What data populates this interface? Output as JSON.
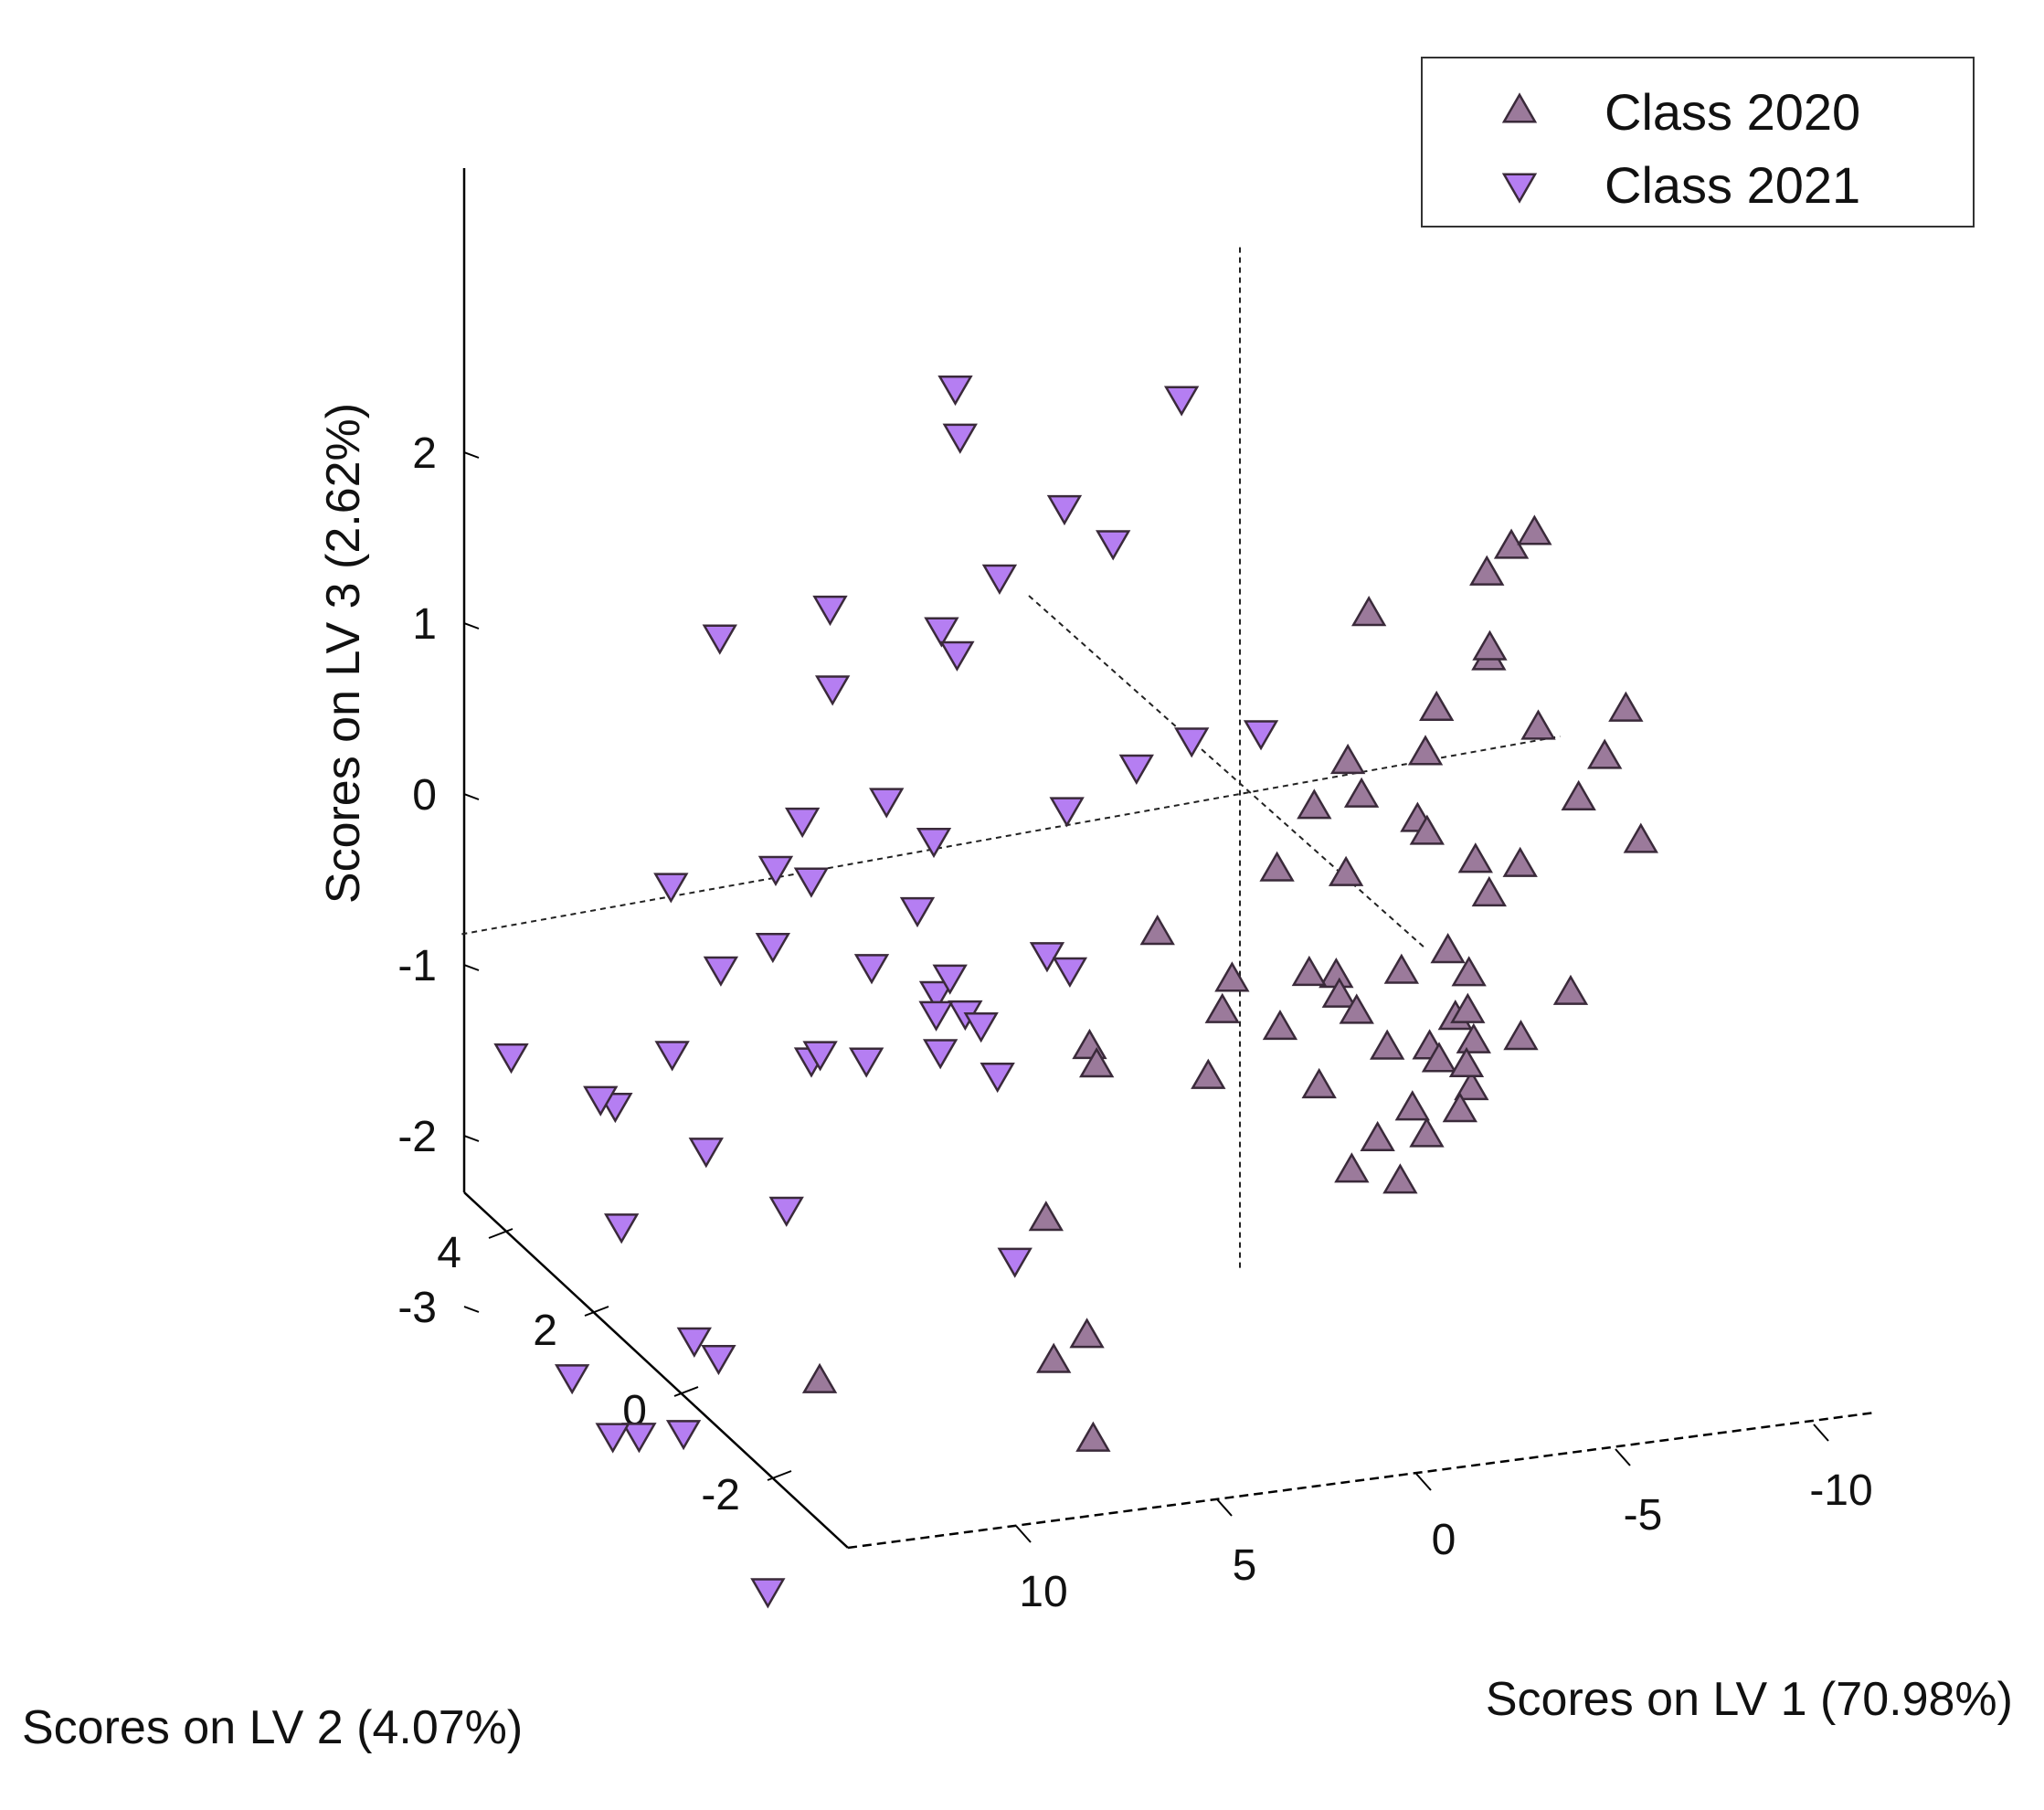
{
  "chart_data": {
    "type": "scatter",
    "projection": "3d",
    "xlabel": "Scores on LV 1 (70.98%)",
    "ylabel": "Scores on LV 2 (4.07%)",
    "zlabel": "Scores on LV 3 (2.62%)",
    "x_ticks": [
      {
        "value": 10,
        "label": "10"
      },
      {
        "value": 5,
        "label": "5"
      },
      {
        "value": 0,
        "label": "0"
      },
      {
        "value": -5,
        "label": "-5"
      },
      {
        "value": -10,
        "label": "-10"
      }
    ],
    "y_ticks": [
      {
        "value": 4,
        "label": "4"
      },
      {
        "value": 2,
        "label": "2"
      },
      {
        "value": 0,
        "label": "0"
      },
      {
        "value": -2,
        "label": "-2"
      }
    ],
    "z_ticks": [
      {
        "value": 2,
        "label": "2"
      },
      {
        "value": 1,
        "label": "1"
      },
      {
        "value": 0,
        "label": "0"
      },
      {
        "value": -1,
        "label": "-1"
      },
      {
        "value": -2,
        "label": "-2"
      },
      {
        "value": -3,
        "label": "-3"
      }
    ],
    "legend": {
      "placement": "top-right",
      "entries": [
        {
          "label": "Class 2020",
          "marker": "triangle-up",
          "color": "#9b7a9b"
        },
        {
          "label": "Class 2021",
          "marker": "triangle-down",
          "color": "#b57ef2"
        }
      ]
    },
    "series": [
      {
        "name": "Class 2020",
        "marker": "triangle-up",
        "color": "#9b7a9b",
        "points": [
          [
            -9.4,
            0.2,
            1.1
          ],
          [
            -9.8,
            0.4,
            1.1
          ],
          [
            -3.8,
            0.4,
            0.8
          ],
          [
            -7.2,
            0.8,
            0.8
          ],
          [
            -8.8,
            0.1,
            0.5
          ],
          [
            -8.4,
            0.3,
            0.5
          ],
          [
            -8.0,
            -0.4,
            0.4
          ],
          [
            -5.5,
            -0.5,
            0.0
          ],
          [
            -2.6,
            0.6,
            -0.1
          ],
          [
            -9.5,
            0.6,
            -0.1
          ],
          [
            -11.8,
            1.0,
            -0.2
          ],
          [
            -13.0,
            0.1,
            -0.2
          ],
          [
            -1.6,
            0.5,
            -0.3
          ],
          [
            -4.1,
            1.2,
            -0.3
          ],
          [
            -6.0,
            0.2,
            -0.4
          ],
          [
            -2.0,
            -0.3,
            -0.4
          ],
          [
            -7.0,
            -0.1,
            -0.4
          ],
          [
            -11.4,
            0.4,
            -0.5
          ],
          [
            -4.5,
            -0.3,
            -0.5
          ],
          [
            -11.0,
            -0.9,
            -0.6
          ],
          [
            -8.1,
            0.2,
            -0.7
          ],
          [
            -9.5,
            0.3,
            -0.8
          ],
          [
            -1.9,
            -1.0,
            -0.8
          ],
          [
            -13.0,
            0.7,
            -0.9
          ],
          [
            4.3,
            0.6,
            -0.9
          ],
          [
            -4.8,
            -0.6,
            -1.0
          ],
          [
            3.7,
            -0.8,
            -1.1
          ],
          [
            0.2,
            -0.2,
            -1.2
          ],
          [
            -7.1,
            0.2,
            -1.2
          ],
          [
            -1.2,
            0.6,
            -1.3
          ],
          [
            -8.3,
            0.0,
            -1.3
          ],
          [
            4.1,
            -0.5,
            -1.3
          ],
          [
            -5.2,
            0.3,
            -1.3
          ],
          [
            -8.9,
            -0.5,
            -1.4
          ],
          [
            -0.6,
            -0.8,
            -1.4
          ],
          [
            -10.0,
            -0.7,
            -1.5
          ],
          [
            -0.8,
            0.3,
            -1.5
          ],
          [
            -1.2,
            1.1,
            -1.6
          ],
          [
            -2.7,
            0.7,
            -1.6
          ],
          [
            -4.4,
            -0.7,
            -1.6
          ],
          [
            -7.6,
            0.3,
            -1.6
          ],
          [
            -4.9,
            0.2,
            -1.7
          ],
          [
            -10.4,
            -0.1,
            -1.7
          ],
          [
            -6.0,
            0.4,
            -1.8
          ],
          [
            -7.0,
            0.1,
            -1.8
          ],
          [
            -8.0,
            -0.8,
            -1.8
          ],
          [
            -9.8,
            1.0,
            -1.8
          ],
          [
            -9.7,
            -0.6,
            -1.8
          ],
          [
            -6.3,
            -0.6,
            -2.0
          ],
          [
            -6.9,
            0.6,
            -2.0
          ],
          [
            -8.3,
            -0.7,
            -2.0
          ],
          [
            -5.8,
            -0.8,
            -2.1
          ],
          [
            -7.1,
            0.4,
            -2.2
          ],
          [
            -6.9,
            -0.5,
            -2.3
          ],
          [
            7.9,
            0.4,
            -2.4
          ],
          [
            13.7,
            -0.7,
            -2.8
          ],
          [
            5.0,
            -0.8,
            -2.9
          ],
          [
            6.2,
            0.3,
            -3.1
          ],
          [
            5.1,
            -0.1,
            -3.6
          ]
        ]
      },
      {
        "name": "Class 2021",
        "marker": "triangle-down",
        "color": "#b57ef2",
        "points": [
          [
            12.5,
            1.0,
            2.4
          ],
          [
            4.3,
            1.0,
            2.1
          ],
          [
            13.2,
            1.4,
            2.0
          ],
          [
            17.1,
            -0.8,
            1.7
          ],
          [
            7.4,
            -0.6,
            1.7
          ],
          [
            9.2,
            1.3,
            1.5
          ],
          [
            7.0,
            1.1,
            1.3
          ],
          [
            16.6,
            0.8,
            1.3
          ],
          [
            15.2,
            0.2,
            1.0
          ],
          [
            13.0,
            1.0,
            1.0
          ],
          [
            12.0,
            0.8,
            0.9
          ],
          [
            0.0,
            -0.8,
            0.6
          ],
          [
            2.0,
            -0.8,
            0.5
          ],
          [
            -1.2,
            -0.2,
            0.4
          ],
          [
            15.2,
            -0.3,
            0.4
          ],
          [
            14.2,
            -1.2,
            0.4
          ],
          [
            13.9,
            0.5,
            0.2
          ],
          [
            10.0,
            -0.5,
            0.2
          ],
          [
            20.4,
            -0.1,
            0.1
          ],
          [
            7.8,
            0.7,
            -0.1
          ],
          [
            17.5,
            0.9,
            -0.3
          ],
          [
            17.5,
            -0.6,
            -0.3
          ],
          [
            13.0,
            0.6,
            -0.5
          ],
          [
            17.8,
            0.4,
            -0.5
          ],
          [
            14.0,
            0.3,
            -0.7
          ],
          [
            9.9,
            -0.5,
            -0.7
          ],
          [
            19.7,
            -0.4,
            -0.8
          ],
          [
            9.3,
            -0.3,
            -0.9
          ],
          [
            27.5,
            0.5,
            -0.9
          ],
          [
            14.0,
            -0.7,
            -0.9
          ],
          [
            8.3,
            0.6,
            -0.9
          ],
          [
            11.6,
            0.5,
            -0.9
          ],
          [
            6.6,
            0.2,
            -0.9
          ],
          [
            13.9,
            -0.6,
            -0.9
          ],
          [
            22.2,
            -0.2,
            -1.1
          ],
          [
            6.6,
            -1.0,
            -1.1
          ],
          [
            9.6,
            0.1,
            -1.1
          ],
          [
            13.1,
            -0.2,
            -1.1
          ],
          [
            10.2,
            -0.3,
            -1.1
          ],
          [
            12.1,
            0.5,
            -1.1
          ],
          [
            24.7,
            0.7,
            -1.3
          ],
          [
            20.0,
            0.3,
            -1.6
          ],
          [
            21.1,
            -0.6,
            -1.7
          ],
          [
            18.4,
            0.9,
            -2.2
          ],
          [
            7.5,
            -0.3,
            -2.4
          ],
          [
            18.9,
            -0.4,
            -2.5
          ],
          [
            17.8,
            -0.5,
            -2.6
          ],
          [
            24.2,
            0.0,
            -2.7
          ],
          [
            20.9,
            -0.4,
            -3.0
          ],
          [
            23.6,
            0.4,
            -3.2
          ],
          [
            20.6,
            0.2,
            -3.2
          ],
          [
            18.2,
            0.5,
            -4.3
          ]
        ]
      }
    ]
  }
}
